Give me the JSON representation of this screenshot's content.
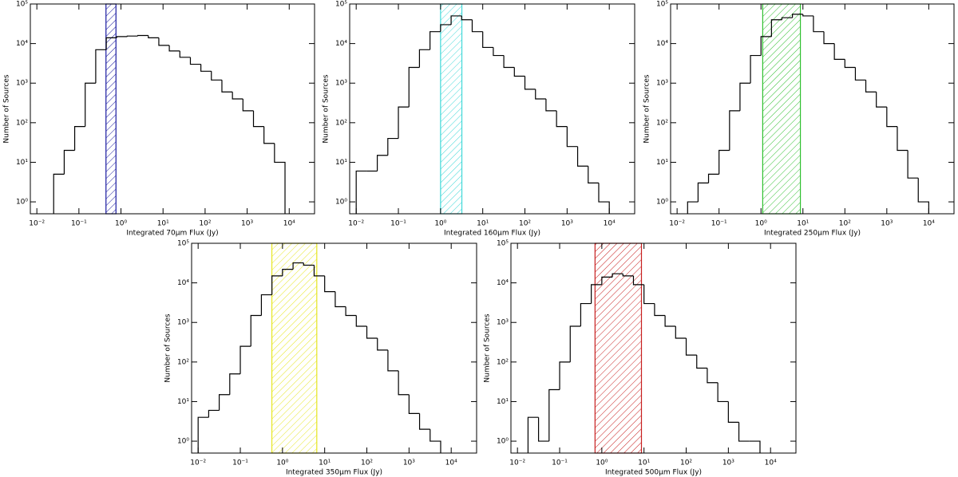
{
  "chart_data": [
    {
      "type": "histogram",
      "xlabel": "Integrated 70μm Flux (Jy)",
      "ylabel": "Number of Sources",
      "log_x": true,
      "log_y": true,
      "xlim": [
        0.007,
        40000
      ],
      "ylim": [
        0.5,
        100000
      ],
      "xticks": [
        {
          "value": 0.01,
          "label": "10⁻²"
        },
        {
          "value": 0.1,
          "label": "10⁻¹"
        },
        {
          "value": 1,
          "label": "10⁰"
        },
        {
          "value": 10,
          "label": "10¹"
        },
        {
          "value": 100,
          "label": "10²"
        },
        {
          "value": 1000,
          "label": "10³"
        },
        {
          "value": 10000,
          "label": "10⁴"
        }
      ],
      "yticks": [
        {
          "value": 1,
          "label": "10⁰"
        },
        {
          "value": 10,
          "label": "10¹"
        },
        {
          "value": 100,
          "label": "10²"
        },
        {
          "value": 1000,
          "label": "10³"
        },
        {
          "value": 10000,
          "label": "10⁴"
        },
        {
          "value": 100000,
          "label": "10⁵"
        }
      ],
      "bins": [
        0.0251,
        0.0447,
        0.0794,
        0.141,
        0.251,
        0.447,
        0.794,
        1.41,
        2.51,
        4.47,
        7.94,
        14.1,
        25.1,
        44.7,
        79.4,
        141,
        251,
        447,
        794,
        1413,
        2512,
        4467,
        7943
      ],
      "counts": [
        5,
        20,
        80,
        1000,
        7000,
        14000,
        15000,
        15500,
        16000,
        14000,
        9000,
        6500,
        4500,
        3000,
        2000,
        1200,
        600,
        400,
        200,
        80,
        30,
        10
      ],
      "color": "#000000",
      "band": [
        0.44,
        0.76
      ],
      "band_color": "#1a1aa0"
    },
    {
      "type": "histogram",
      "xlabel": "Integrated 160μm Flux (Jy)",
      "ylabel": "Number of Sources",
      "log_x": true,
      "log_y": true,
      "xlim": [
        0.007,
        40000
      ],
      "ylim": [
        0.5,
        100000
      ],
      "xticks": [
        {
          "value": 0.01,
          "label": "10⁻²"
        },
        {
          "value": 0.1,
          "label": "10⁻¹"
        },
        {
          "value": 1,
          "label": "10⁰"
        },
        {
          "value": 10,
          "label": "10¹"
        },
        {
          "value": 100,
          "label": "10²"
        },
        {
          "value": 1000,
          "label": "10³"
        },
        {
          "value": 10000,
          "label": "10⁴"
        }
      ],
      "yticks": [
        {
          "value": 1,
          "label": "10⁰"
        },
        {
          "value": 10,
          "label": "10¹"
        },
        {
          "value": 100,
          "label": "10²"
        },
        {
          "value": 1000,
          "label": "10³"
        },
        {
          "value": 10000,
          "label": "10⁴"
        },
        {
          "value": 100000,
          "label": "10⁵"
        }
      ],
      "bins": [
        0.01,
        0.0178,
        0.0316,
        0.0562,
        0.1,
        0.178,
        0.316,
        0.562,
        1,
        1.78,
        3.16,
        5.62,
        10,
        17.8,
        31.6,
        56.2,
        100,
        178,
        316,
        562,
        1000,
        1778,
        3162,
        5623,
        10000
      ],
      "counts": [
        6,
        6,
        15,
        40,
        250,
        2500,
        7000,
        20000,
        30000,
        50000,
        40000,
        20000,
        8000,
        5000,
        2500,
        1500,
        700,
        400,
        200,
        80,
        25,
        8,
        3,
        1
      ],
      "color": "#000000",
      "band": [
        1.0,
        3.2
      ],
      "band_color": "#40d8d8"
    },
    {
      "type": "histogram",
      "xlabel": "Integrated 250μm Flux (Jy)",
      "ylabel": "Number of Sources",
      "log_x": true,
      "log_y": true,
      "xlim": [
        0.007,
        40000
      ],
      "ylim": [
        0.5,
        100000
      ],
      "xticks": [
        {
          "value": 0.01,
          "label": "10⁻²"
        },
        {
          "value": 0.1,
          "label": "10⁻¹"
        },
        {
          "value": 1,
          "label": "10⁰"
        },
        {
          "value": 10,
          "label": "10¹"
        },
        {
          "value": 100,
          "label": "10²"
        },
        {
          "value": 1000,
          "label": "10³"
        },
        {
          "value": 10000,
          "label": "10⁴"
        }
      ],
      "yticks": [
        {
          "value": 1,
          "label": "10⁰"
        },
        {
          "value": 10,
          "label": "10¹"
        },
        {
          "value": 100,
          "label": "10²"
        },
        {
          "value": 1000,
          "label": "10³"
        },
        {
          "value": 10000,
          "label": "10⁴"
        },
        {
          "value": 100000,
          "label": "10⁵"
        }
      ],
      "bins": [
        0.0178,
        0.0316,
        0.0562,
        0.1,
        0.178,
        0.316,
        0.562,
        1,
        1.78,
        3.16,
        5.62,
        10,
        17.8,
        31.6,
        56.2,
        100,
        178,
        316,
        562,
        1000,
        1778,
        3162,
        5623,
        10000
      ],
      "counts": [
        1,
        3,
        5,
        20,
        200,
        1000,
        5000,
        15000,
        40000,
        45000,
        55000,
        50000,
        20000,
        10000,
        4000,
        2500,
        1200,
        600,
        250,
        80,
        20,
        4,
        1
      ],
      "color": "#000000",
      "band": [
        1.1,
        8.7
      ],
      "band_color": "#2fbf2f"
    },
    {
      "type": "histogram",
      "xlabel": "Integrated 350μm Flux (Jy)",
      "ylabel": "Number of Sources",
      "log_x": true,
      "log_y": true,
      "xlim": [
        0.007,
        40000
      ],
      "ylim": [
        0.5,
        100000
      ],
      "xticks": [
        {
          "value": 0.01,
          "label": "10⁻²"
        },
        {
          "value": 0.1,
          "label": "10⁻¹"
        },
        {
          "value": 1,
          "label": "10⁰"
        },
        {
          "value": 10,
          "label": "10¹"
        },
        {
          "value": 100,
          "label": "10²"
        },
        {
          "value": 1000,
          "label": "10³"
        },
        {
          "value": 10000,
          "label": "10⁴"
        }
      ],
      "yticks": [
        {
          "value": 1,
          "label": "10⁰"
        },
        {
          "value": 10,
          "label": "10¹"
        },
        {
          "value": 100,
          "label": "10²"
        },
        {
          "value": 1000,
          "label": "10³"
        },
        {
          "value": 10000,
          "label": "10⁴"
        },
        {
          "value": 100000,
          "label": "10⁵"
        }
      ],
      "bins": [
        0.01,
        0.0178,
        0.0316,
        0.0562,
        0.1,
        0.178,
        0.316,
        0.562,
        1,
        1.78,
        3.16,
        5.62,
        10,
        17.8,
        31.6,
        56.2,
        100,
        178,
        316,
        562,
        1000,
        1778,
        3162,
        5623
      ],
      "counts": [
        4,
        6,
        15,
        50,
        250,
        1500,
        5000,
        15000,
        22000,
        32000,
        28000,
        15000,
        6000,
        2500,
        1500,
        800,
        400,
        200,
        60,
        15,
        5,
        2,
        1
      ],
      "color": "#000000",
      "band": [
        0.56,
        6.5
      ],
      "band_color": "#e6e622"
    },
    {
      "type": "histogram",
      "xlabel": "Integrated 500μm Flux (Jy)",
      "ylabel": "Number of Sources",
      "log_x": true,
      "log_y": true,
      "xlim": [
        0.007,
        40000
      ],
      "ylim": [
        0.5,
        100000
      ],
      "xticks": [
        {
          "value": 0.01,
          "label": "10⁻²"
        },
        {
          "value": 0.1,
          "label": "10⁻¹"
        },
        {
          "value": 1,
          "label": "10⁰"
        },
        {
          "value": 10,
          "label": "10¹"
        },
        {
          "value": 100,
          "label": "10²"
        },
        {
          "value": 1000,
          "label": "10³"
        },
        {
          "value": 10000,
          "label": "10⁴"
        }
      ],
      "yticks": [
        {
          "value": 1,
          "label": "10⁰"
        },
        {
          "value": 10,
          "label": "10¹"
        },
        {
          "value": 100,
          "label": "10²"
        },
        {
          "value": 1000,
          "label": "10³"
        },
        {
          "value": 10000,
          "label": "10⁴"
        },
        {
          "value": 100000,
          "label": "10⁵"
        }
      ],
      "bins": [
        0.0178,
        0.0316,
        0.0562,
        0.1,
        0.178,
        0.316,
        0.562,
        1,
        1.78,
        3.16,
        5.62,
        10,
        17.8,
        31.6,
        56.2,
        100,
        178,
        316,
        562,
        1000,
        1778,
        3162,
        5623
      ],
      "counts": [
        4,
        1,
        20,
        100,
        800,
        3000,
        9000,
        14000,
        17000,
        15000,
        9000,
        3000,
        1500,
        800,
        400,
        150,
        70,
        30,
        10,
        3,
        1,
        1
      ],
      "color": "#000000",
      "band": [
        0.69,
        8.7
      ],
      "band_color": "#c82020"
    }
  ]
}
